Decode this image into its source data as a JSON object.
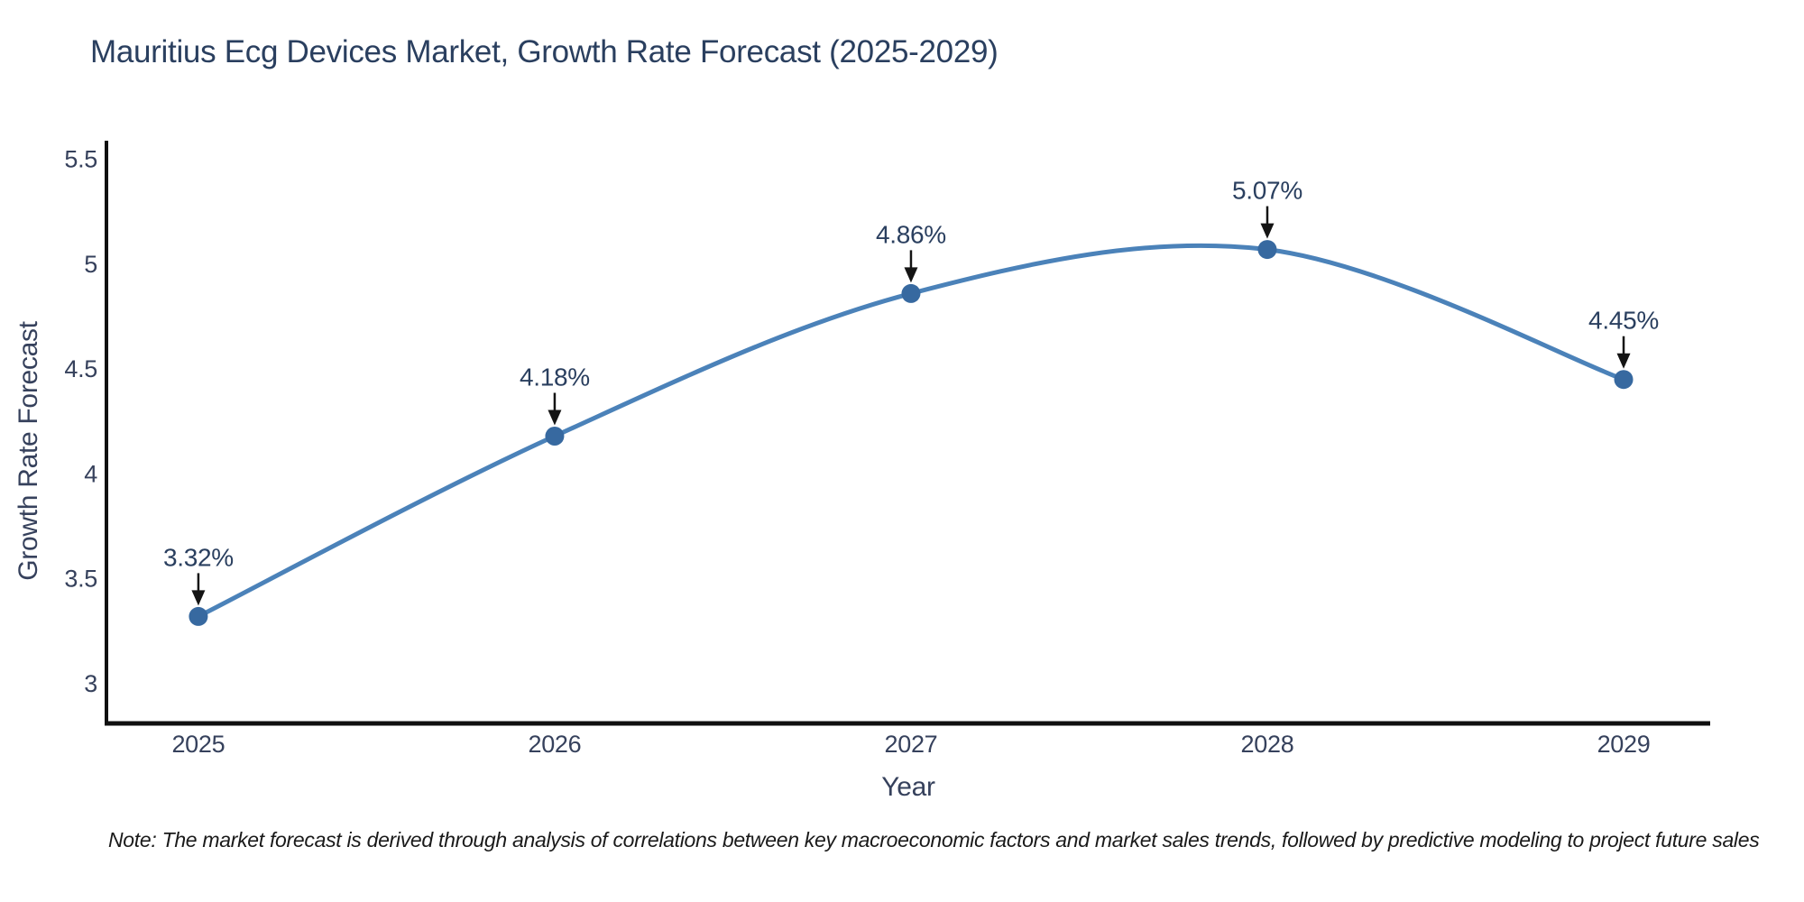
{
  "title": "Mauritius Ecg Devices Market, Growth Rate Forecast (2025-2029)",
  "note": "Note: The market forecast is derived through analysis of correlations between key macroeconomic factors and market sales trends, followed by predictive modeling to project future sales",
  "chart_data": {
    "type": "line",
    "title": "Mauritius Ecg Devices Market, Growth Rate Forecast (2025-2029)",
    "xlabel": "Year",
    "ylabel": "Growth Rate Forecast",
    "x": [
      2025,
      2026,
      2027,
      2028,
      2029
    ],
    "values": [
      3.32,
      4.18,
      4.86,
      5.07,
      4.45
    ],
    "point_labels": [
      "3.32%",
      "4.18%",
      "4.86%",
      "5.07%",
      "4.45%"
    ],
    "xtick_labels": [
      "2025",
      "2026",
      "2027",
      "2028",
      "2029"
    ],
    "yticks": [
      3,
      3.5,
      4,
      4.5,
      5,
      5.5
    ],
    "ytick_labels": [
      "3",
      "3.5",
      "4",
      "4.5",
      "5",
      "5.5"
    ],
    "xlim": [
      2024.742,
      2029.243
    ],
    "ylim": [
      2.81,
      5.58
    ],
    "grid": false,
    "legend": "none",
    "line_style": "smooth-spline-with-markers-and-arrow-annotations",
    "colors": {
      "line": "#4b82b9",
      "marker": "#3769a0",
      "arrow": "#141414",
      "spine": "#101010",
      "tick_label": "#36415c",
      "title": "#2a3f5f",
      "note": "#1a1a1a",
      "background": "#ffffff"
    }
  }
}
